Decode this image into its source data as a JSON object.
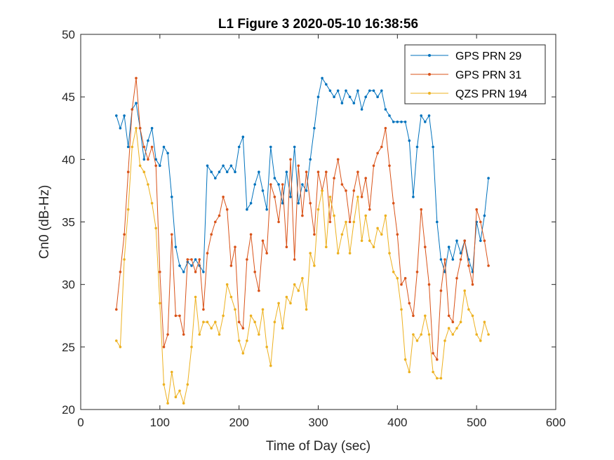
{
  "chart_data": {
    "type": "line",
    "title": "L1 Figure 3 2020-05-10 16:38:56",
    "xlabel": "Time of Day (sec)",
    "ylabel": "Cn0 (dB-Hz)",
    "xlim": [
      0,
      600
    ],
    "ylim": [
      20,
      50
    ],
    "xticks": [
      0,
      100,
      200,
      300,
      400,
      500,
      600
    ],
    "yticks": [
      20,
      25,
      30,
      35,
      40,
      45,
      50
    ],
    "grid": false,
    "legend_position": "top-right",
    "markers": "dot",
    "series": [
      {
        "name": "GPS PRN 29",
        "color": "#0072BD",
        "x": [
          45,
          50,
          55,
          60,
          65,
          70,
          75,
          80,
          85,
          90,
          95,
          100,
          105,
          110,
          115,
          120,
          125,
          130,
          135,
          140,
          145,
          150,
          155,
          160,
          165,
          170,
          175,
          180,
          185,
          190,
          195,
          200,
          205,
          210,
          215,
          220,
          225,
          230,
          235,
          240,
          245,
          250,
          255,
          260,
          265,
          270,
          275,
          280,
          285,
          290,
          295,
          300,
          305,
          310,
          315,
          320,
          325,
          330,
          335,
          340,
          345,
          350,
          355,
          360,
          365,
          370,
          375,
          380,
          385,
          390,
          395,
          400,
          405,
          410,
          415,
          420,
          425,
          430,
          435,
          440,
          445,
          450,
          455,
          460,
          465,
          470,
          475,
          480,
          485,
          490,
          495,
          500,
          505,
          510,
          515
        ],
        "y": [
          43.5,
          42.5,
          43.5,
          41.0,
          44.0,
          44.5,
          42.5,
          40.0,
          41.5,
          42.5,
          40.0,
          39.5,
          41.0,
          40.5,
          37.0,
          33.0,
          31.5,
          31.0,
          31.8,
          31.5,
          32.0,
          31.5,
          31.0,
          39.5,
          39.0,
          38.5,
          39.0,
          39.5,
          39.0,
          39.5,
          39.0,
          41.0,
          41.8,
          36.0,
          36.5,
          38.0,
          39.0,
          37.5,
          36.0,
          41.0,
          38.5,
          38.0,
          36.5,
          39.0,
          37.0,
          41.0,
          36.5,
          38.0,
          37.5,
          40.0,
          42.5,
          45.0,
          46.5,
          46.0,
          45.5,
          45.0,
          45.5,
          44.5,
          45.5,
          45.0,
          44.5,
          45.5,
          44.0,
          45.0,
          45.5,
          45.5,
          45.0,
          45.5,
          44.0,
          43.5,
          43.0,
          43.0,
          43.0,
          43.0,
          41.5,
          37.0,
          41.0,
          43.5,
          43.0,
          43.5,
          41.0,
          35.0,
          32.0,
          31.0,
          33.0,
          32.0,
          33.5,
          32.5,
          33.5,
          32.0,
          31.0,
          35.0,
          33.5,
          35.5,
          38.5
        ]
      },
      {
        "name": "GPS PRN 31",
        "color": "#D95319",
        "x": [
          45,
          50,
          55,
          60,
          65,
          70,
          75,
          80,
          85,
          90,
          95,
          100,
          105,
          110,
          115,
          120,
          125,
          130,
          135,
          140,
          145,
          150,
          155,
          160,
          165,
          170,
          175,
          180,
          185,
          190,
          195,
          200,
          205,
          210,
          215,
          220,
          225,
          230,
          235,
          240,
          245,
          250,
          255,
          260,
          265,
          270,
          275,
          280,
          285,
          290,
          295,
          300,
          305,
          310,
          315,
          320,
          325,
          330,
          335,
          340,
          345,
          350,
          355,
          360,
          365,
          370,
          375,
          380,
          385,
          390,
          395,
          400,
          405,
          410,
          415,
          420,
          425,
          430,
          435,
          440,
          445,
          450,
          455,
          460,
          465,
          470,
          475,
          480,
          485,
          490,
          495,
          500,
          505,
          510,
          515
        ],
        "y": [
          28.0,
          31.0,
          34.0,
          39.0,
          44.0,
          46.5,
          42.5,
          41.0,
          40.0,
          41.0,
          39.5,
          31.0,
          25.0,
          26.0,
          34.0,
          27.5,
          27.5,
          26.0,
          32.0,
          32.0,
          31.0,
          32.0,
          28.0,
          32.5,
          34.0,
          35.0,
          35.5,
          37.0,
          36.0,
          31.5,
          33.0,
          27.0,
          26.5,
          32.0,
          34.0,
          31.0,
          29.5,
          33.5,
          32.5,
          38.0,
          37.0,
          35.0,
          38.0,
          33.0,
          40.0,
          32.0,
          39.5,
          35.5,
          39.0,
          36.5,
          34.0,
          39.0,
          37.5,
          39.0,
          35.0,
          38.5,
          40.0,
          38.0,
          37.5,
          35.0,
          37.5,
          39.0,
          37.0,
          38.5,
          36.0,
          39.5,
          40.5,
          41.0,
          42.5,
          39.5,
          36.5,
          34.0,
          30.0,
          30.5,
          28.5,
          27.5,
          31.0,
          36.0,
          33.0,
          30.0,
          24.5,
          24.0,
          29.5,
          32.0,
          27.5,
          27.0,
          30.5,
          32.0,
          33.5,
          31.5,
          30.0,
          36.0,
          35.0,
          33.5,
          31.5
        ]
      },
      {
        "name": "QZS PRN 194",
        "color": "#EDB120",
        "x": [
          45,
          50,
          55,
          60,
          65,
          70,
          75,
          80,
          85,
          90,
          95,
          100,
          105,
          110,
          115,
          120,
          125,
          130,
          135,
          140,
          145,
          150,
          155,
          160,
          165,
          170,
          175,
          180,
          185,
          190,
          195,
          200,
          205,
          210,
          215,
          220,
          225,
          230,
          235,
          240,
          245,
          250,
          255,
          260,
          265,
          270,
          275,
          280,
          285,
          290,
          295,
          300,
          305,
          310,
          315,
          320,
          325,
          330,
          335,
          340,
          345,
          350,
          355,
          360,
          365,
          370,
          375,
          380,
          385,
          390,
          395,
          400,
          405,
          410,
          415,
          420,
          425,
          430,
          435,
          440,
          445,
          450,
          455,
          460,
          465,
          470,
          475,
          480,
          485,
          490,
          495,
          500,
          505,
          510,
          515
        ],
        "y": [
          25.5,
          25.0,
          32.0,
          36.0,
          41.0,
          42.5,
          39.5,
          39.0,
          38.0,
          36.5,
          34.5,
          28.5,
          22.0,
          20.5,
          23.0,
          21.0,
          21.5,
          20.5,
          22.0,
          25.0,
          29.0,
          26.0,
          27.0,
          27.0,
          26.5,
          27.0,
          26.0,
          27.5,
          30.0,
          29.0,
          28.0,
          25.5,
          24.5,
          25.5,
          27.5,
          27.0,
          26.0,
          28.0,
          25.0,
          23.5,
          27.0,
          28.5,
          26.5,
          29.0,
          28.5,
          30.0,
          29.5,
          30.5,
          28.0,
          32.5,
          31.5,
          36.0,
          37.5,
          33.0,
          37.0,
          35.5,
          32.5,
          34.0,
          35.0,
          32.5,
          35.0,
          37.0,
          33.5,
          35.5,
          33.5,
          33.0,
          34.5,
          34.0,
          35.5,
          32.5,
          31.0,
          30.5,
          28.0,
          24.0,
          23.0,
          26.0,
          25.5,
          26.0,
          27.5,
          26.0,
          23.0,
          22.5,
          22.5,
          25.5,
          26.5,
          26.0,
          26.5,
          27.0,
          29.5,
          28.0,
          27.5,
          26.0,
          25.5,
          27.0,
          26.0
        ]
      }
    ]
  }
}
